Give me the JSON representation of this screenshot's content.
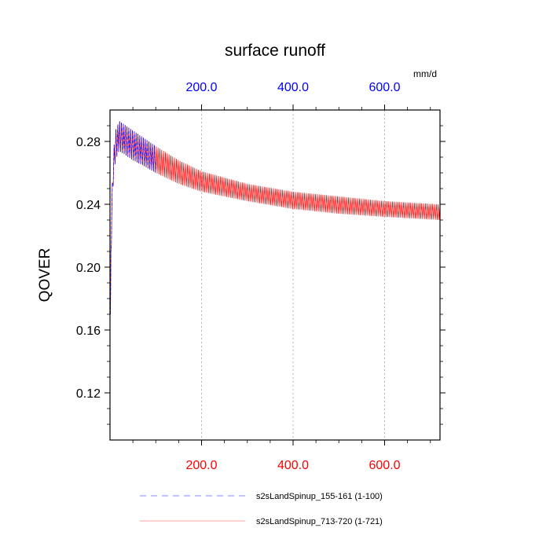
{
  "chart_data": {
    "type": "line",
    "title": "surface runoff",
    "units": "mm/d",
    "ylabel": "QOVER",
    "xlabel": "",
    "xlim": [
      0,
      721
    ],
    "ylim": [
      0.09,
      0.3
    ],
    "x_ticks": [
      "200.0",
      "400.0",
      "600.0"
    ],
    "x_tick_values": [
      200,
      400,
      600
    ],
    "x_tick_color_bottom": "#ff0000",
    "x_tick_color_top": "#0000ff",
    "y_ticks": [
      "0.12",
      "0.16",
      "0.20",
      "0.24",
      "0.28"
    ],
    "y_tick_values": [
      0.12,
      0.16,
      0.2,
      0.24,
      0.28
    ],
    "grid": "vertical dotted at x ticks",
    "legend_placement": "bottom",
    "series": [
      {
        "name": "s2sLandSpinup_155-161 (1-100)",
        "color": "#0000ff",
        "style": "dashed",
        "x_range": [
          1,
          100
        ],
        "envelope_x": [
          1,
          2,
          4,
          6,
          8,
          12,
          20,
          30,
          50,
          70,
          100
        ],
        "envelope_upper": [
          0.17,
          0.22,
          0.245,
          0.262,
          0.275,
          0.287,
          0.293,
          0.291,
          0.287,
          0.283,
          0.277
        ],
        "envelope_lower": [
          0.17,
          0.2,
          0.228,
          0.245,
          0.258,
          0.268,
          0.274,
          0.272,
          0.268,
          0.265,
          0.26
        ]
      },
      {
        "name": "s2sLandSpinup_713-720 (1-721)",
        "color": "#ff0000",
        "style": "solid",
        "x_range": [
          1,
          721
        ],
        "envelope_x": [
          1,
          2,
          4,
          6,
          8,
          12,
          20,
          30,
          50,
          70,
          100,
          150,
          200,
          300,
          400,
          500,
          600,
          721
        ],
        "envelope_upper": [
          0.17,
          0.22,
          0.245,
          0.262,
          0.275,
          0.287,
          0.293,
          0.291,
          0.287,
          0.283,
          0.277,
          0.268,
          0.261,
          0.253,
          0.248,
          0.245,
          0.242,
          0.24
        ],
        "envelope_lower": [
          0.17,
          0.2,
          0.228,
          0.245,
          0.258,
          0.268,
          0.274,
          0.272,
          0.268,
          0.265,
          0.26,
          0.253,
          0.248,
          0.242,
          0.237,
          0.234,
          0.232,
          0.23
        ]
      }
    ]
  }
}
